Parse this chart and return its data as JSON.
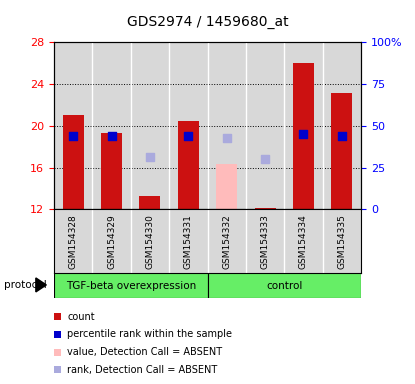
{
  "title": "GDS2974 / 1459680_at",
  "samples": [
    "GSM154328",
    "GSM154329",
    "GSM154330",
    "GSM154331",
    "GSM154332",
    "GSM154333",
    "GSM154334",
    "GSM154335"
  ],
  "bar_values": [
    21.0,
    19.3,
    13.3,
    20.5,
    null,
    12.1,
    26.0,
    23.1
  ],
  "bar_absent_values": [
    null,
    null,
    null,
    null,
    16.3,
    null,
    null,
    null
  ],
  "blue_squares": [
    19.0,
    19.0,
    null,
    19.0,
    null,
    null,
    19.2,
    19.0
  ],
  "blue_absent_squares": [
    null,
    null,
    17.0,
    null,
    18.8,
    16.8,
    null,
    null
  ],
  "ylim_left": [
    12,
    28
  ],
  "ylim_right": [
    0,
    100
  ],
  "yticks_left": [
    12,
    16,
    20,
    24,
    28
  ],
  "yticks_right": [
    0,
    25,
    50,
    75,
    100
  ],
  "ytick_labels_right": [
    "0",
    "25",
    "50",
    "75",
    "100%"
  ],
  "bar_color": "#cc1111",
  "bar_absent_color": "#ffbbbb",
  "blue_color": "#0000cc",
  "blue_absent_color": "#aaaadd",
  "group1_label": "TGF-beta overexpression",
  "group2_label": "control",
  "group1_indices": [
    0,
    1,
    2,
    3
  ],
  "group2_indices": [
    4,
    5,
    6,
    7
  ],
  "group_color": "#66ee66",
  "protocol_label": "protocol",
  "legend_labels": [
    "count",
    "percentile rank within the sample",
    "value, Detection Call = ABSENT",
    "rank, Detection Call = ABSENT"
  ],
  "legend_colors": [
    "#cc1111",
    "#0000cc",
    "#ffbbbb",
    "#aaaadd"
  ],
  "plot_bg_color": "#d8d8d8",
  "tick_label_bg_color": "#d8d8d8",
  "bar_width": 0.55,
  "square_size": 28
}
